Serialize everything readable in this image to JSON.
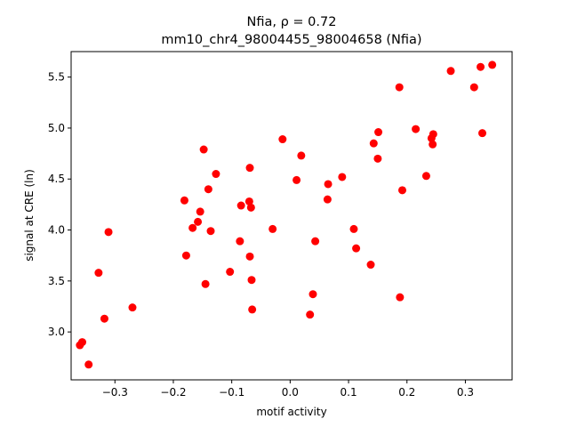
{
  "chart_data": {
    "type": "scatter",
    "title_line1": "Nfia, ρ = 0.72",
    "title_line2": "mm10_chr4_98004455_98004658 (Nfia)",
    "xlabel": "motif activity",
    "ylabel": "signal at CRE (ln)",
    "xlim": [
      -0.375,
      0.38
    ],
    "ylim": [
      2.53,
      5.75
    ],
    "xticks": [
      -0.3,
      -0.2,
      -0.1,
      0.0,
      0.1,
      0.2,
      0.3
    ],
    "xtick_labels": [
      "−0.3",
      "−0.2",
      "−0.1",
      "0.0",
      "0.1",
      "0.2",
      "0.3"
    ],
    "yticks": [
      3.0,
      3.5,
      4.0,
      4.5,
      5.0,
      5.5
    ],
    "ytick_labels": [
      "3.0",
      "3.5",
      "4.0",
      "4.5",
      "5.0",
      "5.5"
    ],
    "grid": false,
    "marker_color": "#ff0000",
    "points": [
      {
        "x": -0.36,
        "y": 2.87
      },
      {
        "x": -0.356,
        "y": 2.9
      },
      {
        "x": -0.345,
        "y": 2.68
      },
      {
        "x": -0.328,
        "y": 3.58
      },
      {
        "x": -0.318,
        "y": 3.13
      },
      {
        "x": -0.311,
        "y": 3.98
      },
      {
        "x": -0.27,
        "y": 3.24
      },
      {
        "x": -0.181,
        "y": 4.29
      },
      {
        "x": -0.178,
        "y": 3.75
      },
      {
        "x": -0.167,
        "y": 4.02
      },
      {
        "x": -0.158,
        "y": 4.08
      },
      {
        "x": -0.154,
        "y": 4.18
      },
      {
        "x": -0.148,
        "y": 4.79
      },
      {
        "x": -0.145,
        "y": 3.47
      },
      {
        "x": -0.14,
        "y": 4.4
      },
      {
        "x": -0.136,
        "y": 3.99
      },
      {
        "x": -0.127,
        "y": 4.55
      },
      {
        "x": -0.103,
        "y": 3.59
      },
      {
        "x": -0.086,
        "y": 3.89
      },
      {
        "x": -0.084,
        "y": 4.24
      },
      {
        "x": -0.07,
        "y": 4.28
      },
      {
        "x": -0.069,
        "y": 4.61
      },
      {
        "x": -0.069,
        "y": 3.74
      },
      {
        "x": -0.067,
        "y": 4.22
      },
      {
        "x": -0.066,
        "y": 3.51
      },
      {
        "x": -0.065,
        "y": 3.22
      },
      {
        "x": -0.03,
        "y": 4.01
      },
      {
        "x": -0.013,
        "y": 4.89
      },
      {
        "x": 0.011,
        "y": 4.49
      },
      {
        "x": 0.019,
        "y": 4.73
      },
      {
        "x": 0.034,
        "y": 3.17
      },
      {
        "x": 0.039,
        "y": 3.37
      },
      {
        "x": 0.043,
        "y": 3.89
      },
      {
        "x": 0.064,
        "y": 4.3
      },
      {
        "x": 0.065,
        "y": 4.45
      },
      {
        "x": 0.089,
        "y": 4.52
      },
      {
        "x": 0.109,
        "y": 4.01
      },
      {
        "x": 0.113,
        "y": 3.82
      },
      {
        "x": 0.138,
        "y": 3.66
      },
      {
        "x": 0.143,
        "y": 4.85
      },
      {
        "x": 0.15,
        "y": 4.7
      },
      {
        "x": 0.151,
        "y": 4.96
      },
      {
        "x": 0.187,
        "y": 5.4
      },
      {
        "x": 0.188,
        "y": 3.34
      },
      {
        "x": 0.192,
        "y": 4.39
      },
      {
        "x": 0.215,
        "y": 4.99
      },
      {
        "x": 0.233,
        "y": 4.53
      },
      {
        "x": 0.242,
        "y": 4.9
      },
      {
        "x": 0.244,
        "y": 4.84
      },
      {
        "x": 0.245,
        "y": 4.94
      },
      {
        "x": 0.275,
        "y": 5.56
      },
      {
        "x": 0.315,
        "y": 5.4
      },
      {
        "x": 0.326,
        "y": 5.6
      },
      {
        "x": 0.329,
        "y": 4.95
      },
      {
        "x": 0.346,
        "y": 5.62
      }
    ]
  }
}
